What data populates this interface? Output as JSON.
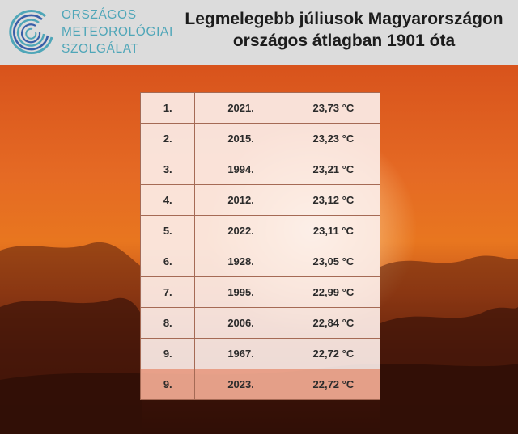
{
  "header": {
    "org_lines": [
      "ORSZÁGOS",
      "METEOROLÓGIAI",
      "SZOLGÁLAT"
    ],
    "title_lines": [
      "Legmelegebb júliusok Magyarországon",
      "országos átlagban 1901 óta"
    ]
  },
  "colors": {
    "header_bg": "#dcdcdc",
    "logo_teal": "#4fa6b8",
    "logo_blue": "#3a5fa8",
    "row_bg": "#fcf0ec",
    "highlight_row_bg": "#f1aa92"
  },
  "table": {
    "rows": [
      {
        "rank": "1.",
        "year": "2021.",
        "temp": "23,73 °C"
      },
      {
        "rank": "2.",
        "year": "2015.",
        "temp": "23,23 °C"
      },
      {
        "rank": "3.",
        "year": "1994.",
        "temp": "23,21 °C"
      },
      {
        "rank": "4.",
        "year": "2012.",
        "temp": "23,12 °C"
      },
      {
        "rank": "5.",
        "year": "2022.",
        "temp": "23,11 °C"
      },
      {
        "rank": "6.",
        "year": "1928.",
        "temp": "23,05 °C"
      },
      {
        "rank": "7.",
        "year": "1995.",
        "temp": "22,99 °C"
      },
      {
        "rank": "8.",
        "year": "2006.",
        "temp": "22,84 °C"
      },
      {
        "rank": "9.",
        "year": "1967.",
        "temp": "22,72 °C"
      },
      {
        "rank": "9.",
        "year": "2023.",
        "temp": "22,72 °C",
        "highlight": true
      }
    ]
  }
}
